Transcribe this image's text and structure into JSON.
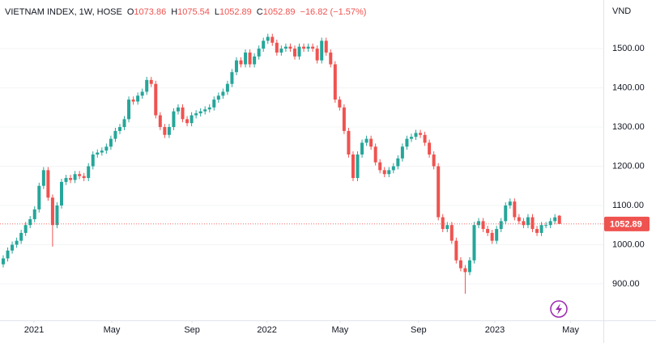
{
  "chart_data": {
    "type": "candlestick",
    "title": "VIETNAM INDEX, 1W, HOSE",
    "ohlc_prefixes": {
      "open": "O",
      "high": "H",
      "low": "L",
      "close": "C"
    },
    "change_text": "−16.82 (−1.57%)",
    "y_unit": "VND",
    "up_color": "#26a69a",
    "down_color": "#ef5350",
    "ylim": [
      807,
      1624
    ],
    "yticks": [
      {
        "value": 900,
        "label": "900.00"
      },
      {
        "value": 1000,
        "label": "1000.00"
      },
      {
        "value": 1100,
        "label": "1100.00"
      },
      {
        "value": 1200,
        "label": "1200.00"
      },
      {
        "value": 1300,
        "label": "1300.00"
      },
      {
        "value": 1400,
        "label": "1400.00"
      },
      {
        "value": 1500,
        "label": "1500.00"
      }
    ],
    "xlim": [
      -0.72,
      133.8
    ],
    "xticks": [
      {
        "value": 6.86,
        "label": "2021"
      },
      {
        "value": 24.2,
        "label": "May"
      },
      {
        "value": 42.1,
        "label": "Sep"
      },
      {
        "value": 58.8,
        "label": "2022"
      },
      {
        "value": 75.1,
        "label": "May"
      },
      {
        "value": 92.6,
        "label": "Sep"
      },
      {
        "value": 109.6,
        "label": "2023"
      },
      {
        "value": 126.5,
        "label": "May"
      }
    ],
    "open": [
      950,
      965,
      985,
      1000,
      1010,
      1030,
      1050,
      1065,
      1090,
      1150,
      1190,
      1120,
      1050,
      1100,
      1160,
      1170,
      1165,
      1180,
      1175,
      1170,
      1200,
      1230,
      1235,
      1240,
      1250,
      1270,
      1290,
      1300,
      1320,
      1370,
      1365,
      1380,
      1390,
      1420,
      1410,
      1330,
      1300,
      1280,
      1300,
      1340,
      1350,
      1320,
      1310,
      1330,
      1335,
      1340,
      1345,
      1350,
      1370,
      1380,
      1390,
      1410,
      1440,
      1470,
      1460,
      1490,
      1460,
      1480,
      1500,
      1520,
      1530,
      1515,
      1490,
      1500,
      1505,
      1500,
      1480,
      1505,
      1500,
      1505,
      1500,
      1470,
      1520,
      1490,
      1460,
      1370,
      1350,
      1290,
      1230,
      1170,
      1230,
      1260,
      1270,
      1250,
      1210,
      1190,
      1180,
      1190,
      1200,
      1220,
      1250,
      1270,
      1275,
      1285,
      1280,
      1260,
      1230,
      1200,
      1070,
      1040,
      1050,
      1010,
      960,
      940,
      930,
      960,
      1050,
      1060,
      1040,
      1030,
      1010,
      1040,
      1060,
      1100,
      1110,
      1070,
      1060,
      1050,
      1070,
      1040,
      1030,
      1050,
      1050,
      1060,
      1073.86
    ],
    "high": [
      973,
      993,
      1008,
      1018,
      1038,
      1058,
      1073,
      1098,
      1158,
      1198,
      1198,
      1128,
      1108,
      1168,
      1178,
      1178,
      1188,
      1188,
      1183,
      1208,
      1238,
      1243,
      1248,
      1258,
      1278,
      1298,
      1308,
      1328,
      1378,
      1378,
      1388,
      1398,
      1428,
      1428,
      1418,
      1338,
      1308,
      1308,
      1348,
      1358,
      1358,
      1328,
      1338,
      1343,
      1348,
      1353,
      1358,
      1378,
      1388,
      1398,
      1418,
      1448,
      1478,
      1478,
      1498,
      1498,
      1488,
      1508,
      1528,
      1538,
      1538,
      1523,
      1508,
      1513,
      1513,
      1508,
      1513,
      1513,
      1513,
      1513,
      1508,
      1528,
      1528,
      1498,
      1468,
      1378,
      1358,
      1298,
      1238,
      1238,
      1268,
      1278,
      1278,
      1258,
      1218,
      1198,
      1198,
      1208,
      1228,
      1258,
      1278,
      1283,
      1293,
      1293,
      1288,
      1268,
      1238,
      1208,
      1078,
      1058,
      1058,
      1018,
      968,
      948,
      968,
      1058,
      1068,
      1068,
      1048,
      1038,
      1048,
      1068,
      1108,
      1118,
      1118,
      1078,
      1068,
      1078,
      1078,
      1048,
      1058,
      1058,
      1068,
      1078,
      1075.54
    ],
    "low": [
      942,
      957,
      977,
      992,
      1002,
      1022,
      1042,
      1057,
      1082,
      1142,
      1112,
      995,
      1042,
      1092,
      1152,
      1157,
      1157,
      1167,
      1162,
      1162,
      1192,
      1222,
      1227,
      1232,
      1242,
      1262,
      1282,
      1292,
      1312,
      1357,
      1357,
      1372,
      1382,
      1402,
      1322,
      1292,
      1272,
      1272,
      1292,
      1332,
      1312,
      1302,
      1302,
      1322,
      1327,
      1332,
      1337,
      1342,
      1362,
      1372,
      1382,
      1402,
      1432,
      1452,
      1452,
      1452,
      1452,
      1472,
      1492,
      1512,
      1507,
      1482,
      1482,
      1492,
      1492,
      1472,
      1472,
      1492,
      1492,
      1492,
      1462,
      1462,
      1482,
      1452,
      1362,
      1342,
      1282,
      1222,
      1162,
      1162,
      1222,
      1252,
      1242,
      1202,
      1182,
      1172,
      1172,
      1182,
      1192,
      1212,
      1242,
      1262,
      1267,
      1272,
      1252,
      1222,
      1192,
      1062,
      1032,
      1032,
      1002,
      952,
      932,
      875,
      922,
      952,
      1042,
      1032,
      1022,
      1002,
      1002,
      1032,
      1052,
      1092,
      1062,
      1052,
      1042,
      1042,
      1032,
      1022,
      1022,
      1042,
      1042,
      1052,
      1052.89
    ],
    "close": [
      965,
      985,
      1000,
      1010,
      1030,
      1050,
      1065,
      1090,
      1150,
      1190,
      1120,
      1050,
      1100,
      1160,
      1170,
      1165,
      1180,
      1175,
      1170,
      1200,
      1230,
      1235,
      1240,
      1250,
      1270,
      1290,
      1300,
      1320,
      1370,
      1365,
      1380,
      1390,
      1420,
      1410,
      1330,
      1300,
      1280,
      1300,
      1340,
      1350,
      1320,
      1310,
      1330,
      1335,
      1340,
      1345,
      1350,
      1370,
      1380,
      1390,
      1410,
      1440,
      1470,
      1460,
      1490,
      1460,
      1480,
      1500,
      1520,
      1530,
      1515,
      1490,
      1500,
      1505,
      1500,
      1480,
      1505,
      1500,
      1505,
      1500,
      1470,
      1520,
      1490,
      1460,
      1370,
      1350,
      1290,
      1230,
      1170,
      1230,
      1260,
      1270,
      1250,
      1210,
      1190,
      1180,
      1190,
      1200,
      1220,
      1250,
      1270,
      1275,
      1285,
      1280,
      1260,
      1230,
      1200,
      1070,
      1040,
      1050,
      1010,
      960,
      940,
      930,
      960,
      1050,
      1060,
      1040,
      1030,
      1010,
      1040,
      1060,
      1100,
      1110,
      1070,
      1060,
      1050,
      1070,
      1040,
      1030,
      1050,
      1050,
      1060,
      1069.71,
      1052.89
    ]
  }
}
